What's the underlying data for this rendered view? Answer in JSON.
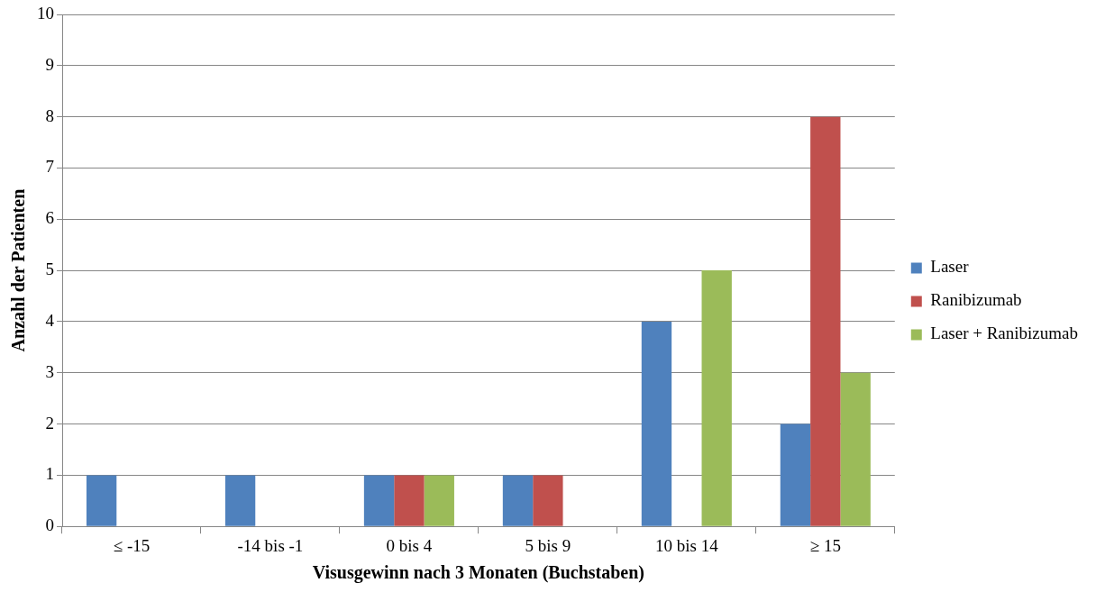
{
  "chart_data": {
    "type": "bar",
    "xlabel": "Visusgewinn nach 3 Monaten (Buchstaben)",
    "ylabel": "Anzahl der Patienten",
    "categories": [
      "≤ -15",
      "-14 bis -1",
      "0 bis 4",
      "5 bis 9",
      "10 bis 14",
      "≥ 15"
    ],
    "series": [
      {
        "name": "Laser",
        "color": "#4f81bd",
        "values": [
          1,
          1,
          1,
          1,
          4,
          2
        ]
      },
      {
        "name": "Ranibizumab",
        "color": "#c0504d",
        "values": [
          0,
          0,
          1,
          1,
          0,
          8
        ]
      },
      {
        "name": "Laser + Ranibizumab",
        "color": "#9bbb59",
        "values": [
          0,
          0,
          1,
          0,
          5,
          3
        ]
      }
    ],
    "ylim": [
      0,
      10
    ],
    "yticks": [
      0,
      1,
      2,
      3,
      4,
      5,
      6,
      7,
      8,
      9,
      10
    ],
    "grid": "y",
    "legend": "right"
  }
}
